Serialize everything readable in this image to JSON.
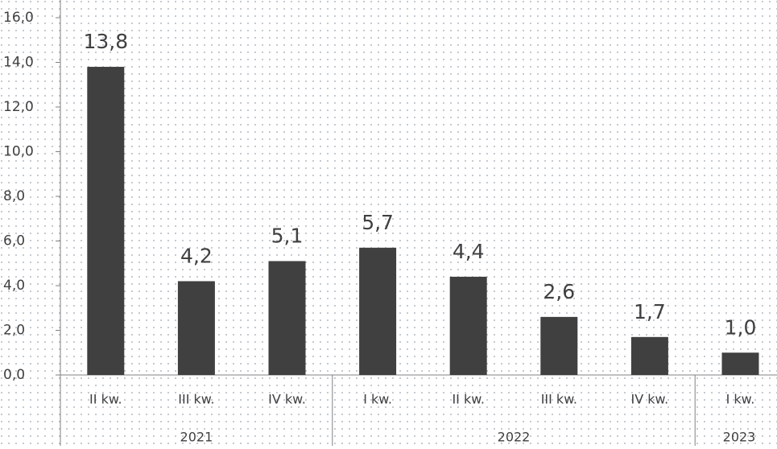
{
  "chart_data": {
    "type": "bar",
    "groups": [
      {
        "name": "2021",
        "categories": [
          "II kw.",
          "III kw.",
          "IV kw."
        ]
      },
      {
        "name": "2022",
        "categories": [
          "I kw.",
          "II kw.",
          "III kw.",
          "IV kw."
        ]
      },
      {
        "name": "2023",
        "categories": [
          "I kw."
        ]
      }
    ],
    "values": [
      13.8,
      4.2,
      5.1,
      5.7,
      4.4,
      2.6,
      1.7,
      1.0
    ],
    "value_labels": [
      "13,8",
      "4,2",
      "5,1",
      "5,7",
      "4,4",
      "2,6",
      "1,7",
      "1,0"
    ],
    "color": "#404040",
    "ylim": [
      0,
      16
    ],
    "yticks": [
      {
        "value": 0,
        "label": "0,0"
      },
      {
        "value": 2,
        "label": "2,0"
      },
      {
        "value": 4,
        "label": "4,0"
      },
      {
        "value": 6,
        "label": "6,0"
      },
      {
        "value": 8,
        "label": "8,0"
      },
      {
        "value": 10,
        "label": "10,0"
      },
      {
        "value": 12,
        "label": "12,0"
      },
      {
        "value": 14,
        "label": "14,0"
      },
      {
        "value": 16,
        "label": "16,0"
      }
    ]
  }
}
